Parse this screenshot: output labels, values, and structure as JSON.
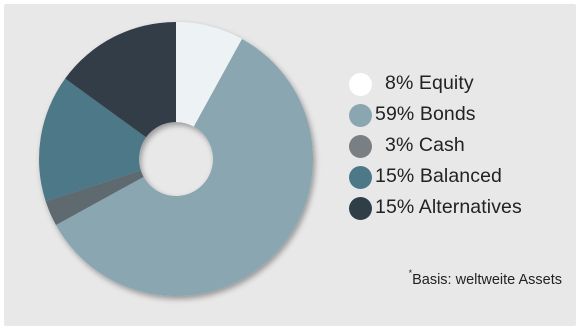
{
  "chart_data": {
    "type": "pie",
    "variant": "donut",
    "slices": [
      {
        "name": "Equity",
        "value": 8,
        "label": "8% Equity",
        "color": "#edf2f4",
        "marker_color": "#ffffff"
      },
      {
        "name": "Bonds",
        "value": 59,
        "label": "59% Bonds",
        "color": "#8aa7b1",
        "marker_color": "#8aa7b1"
      },
      {
        "name": "Cash",
        "value": 3,
        "label": "3% Cash",
        "color": "#5e6a70",
        "marker_color": "#7a7f83"
      },
      {
        "name": "Balanced",
        "value": 15,
        "label": "15% Balanced",
        "color": "#4d7888",
        "marker_color": "#4d7888"
      },
      {
        "name": "Alternatives",
        "value": 15,
        "label": "15% Alternatives",
        "color": "#303e47",
        "marker_color": "#303e47"
      }
    ],
    "legend_position": "right",
    "title": "",
    "footnote_marker": "*",
    "footnote_text": "Basis: weltweite Assets"
  },
  "colors": {
    "background": "#e8e8e8",
    "text": "#222222"
  }
}
